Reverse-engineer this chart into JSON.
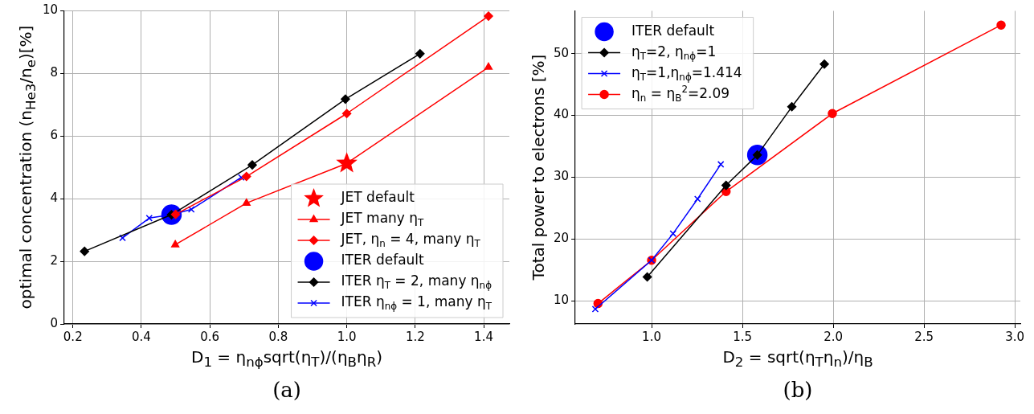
{
  "chart_data": [
    {
      "type": "line",
      "xlabel": "D$_{1}$ = η$_{nϕ}$sqrt(η$_{T}$)/(η$_{B}$η$_{R}$)",
      "ylabel": "optimal concentration (n$_{He3}$/n$_{e}$)[%]",
      "annotations": [
        "(a)"
      ],
      "xlim": [
        0.175,
        1.475
      ],
      "ylim": [
        0,
        10
      ],
      "xticks": [
        0.2,
        0.4,
        0.6,
        0.8,
        {
          "value": 1,
          "label": "1.0"
        },
        1.2,
        1.4
      ],
      "yticks": [
        0,
        2,
        4,
        6,
        8,
        10
      ],
      "grid": true,
      "legend": "bottom right",
      "series": [
        {
          "name": "JET default",
          "type": "scatter",
          "marker": "star",
          "color": "#ff0000",
          "x": [
            1.0
          ],
          "values": [
            5.13
          ]
        },
        {
          "name": "JET many η$_{T}$",
          "type": "line",
          "marker": "triangle",
          "color": "#ff0000",
          "x": [
            0.499,
            0.707,
            1.0,
            1.414
          ],
          "values": [
            2.53,
            3.86,
            5.13,
            8.2
          ]
        },
        {
          "name": "JET, η$_{n}$ = 4, many η$_{T}$",
          "type": "line",
          "marker": "diamond",
          "color": "#ff0000",
          "x": [
            0.5,
            0.707,
            1.0,
            1.414
          ],
          "values": [
            3.5,
            4.71,
            6.72,
            9.83
          ]
        },
        {
          "name": "ITER default",
          "type": "scatter",
          "marker": "circle",
          "color": "#0000ff",
          "x": [
            0.488
          ],
          "values": [
            3.49
          ]
        },
        {
          "name": "ITER η$_{T}$ = 2, many η$_{nϕ}$",
          "type": "line",
          "marker": "diamond",
          "color": "#000000",
          "x": [
            0.234,
            0.488,
            0.724,
            0.996,
            1.214
          ],
          "values": [
            2.32,
            3.49,
            5.08,
            7.18,
            8.63
          ]
        },
        {
          "name": "ITER η$_{nϕ}$ = 1, many η$_{T}$",
          "type": "line",
          "marker": "cross",
          "color": "#0000ff",
          "x": [
            0.345,
            0.423,
            0.488,
            0.546,
            0.692
          ],
          "values": [
            2.75,
            3.38,
            3.49,
            3.66,
            4.68
          ]
        }
      ]
    },
    {
      "type": "line",
      "xlabel": "D$_{2}$ = sqrt(η$_{T}$η$_{n}$)/η$_{B}$",
      "ylabel": "Total power to electrons [%]",
      "annotations": [
        "(b)"
      ],
      "xlim": [
        0.58,
        3.03
      ],
      "ylim": [
        6.3,
        56.9
      ],
      "xticks": [
        {
          "value": 1,
          "label": "1.0"
        },
        1.5,
        {
          "value": 2,
          "label": "2.0"
        },
        2.5,
        {
          "value": 3,
          "label": "3.0"
        }
      ],
      "yticks": [
        10,
        20,
        30,
        40,
        50
      ],
      "grid": true,
      "legend": "top left",
      "series": [
        {
          "name": "ITER default",
          "type": "scatter",
          "marker": "circle",
          "color": "#0000ff",
          "x": [
            1.582
          ],
          "values": [
            33.6
          ]
        },
        {
          "name": "η$_{T}$=2, η$_{nϕ}$=1",
          "type": "line",
          "marker": "diamond",
          "color": "#000000",
          "x": [
            0.976,
            1.41,
            1.582,
            1.772,
            1.951
          ],
          "values": [
            13.9,
            28.7,
            33.6,
            41.4,
            48.3
          ]
        },
        {
          "name": "η$_{T}$=1,η$_{nϕ}$=1.414",
          "type": "line",
          "marker": "cross",
          "color": "#0000ff",
          "x": [
            0.69,
            1.0,
            1.118,
            1.253,
            1.381
          ],
          "values": [
            8.7,
            16.6,
            20.9,
            26.5,
            32.1
          ]
        },
        {
          "name": "η$_{n}$ = η$_{B}$$^{2}$=2.09",
          "type": "line",
          "marker": "circle",
          "color": "#ff0000",
          "x": [
            0.705,
            1.0,
            1.41,
            1.995,
            2.924
          ],
          "values": [
            9.6,
            16.6,
            27.7,
            40.3,
            54.6
          ]
        }
      ]
    }
  ]
}
